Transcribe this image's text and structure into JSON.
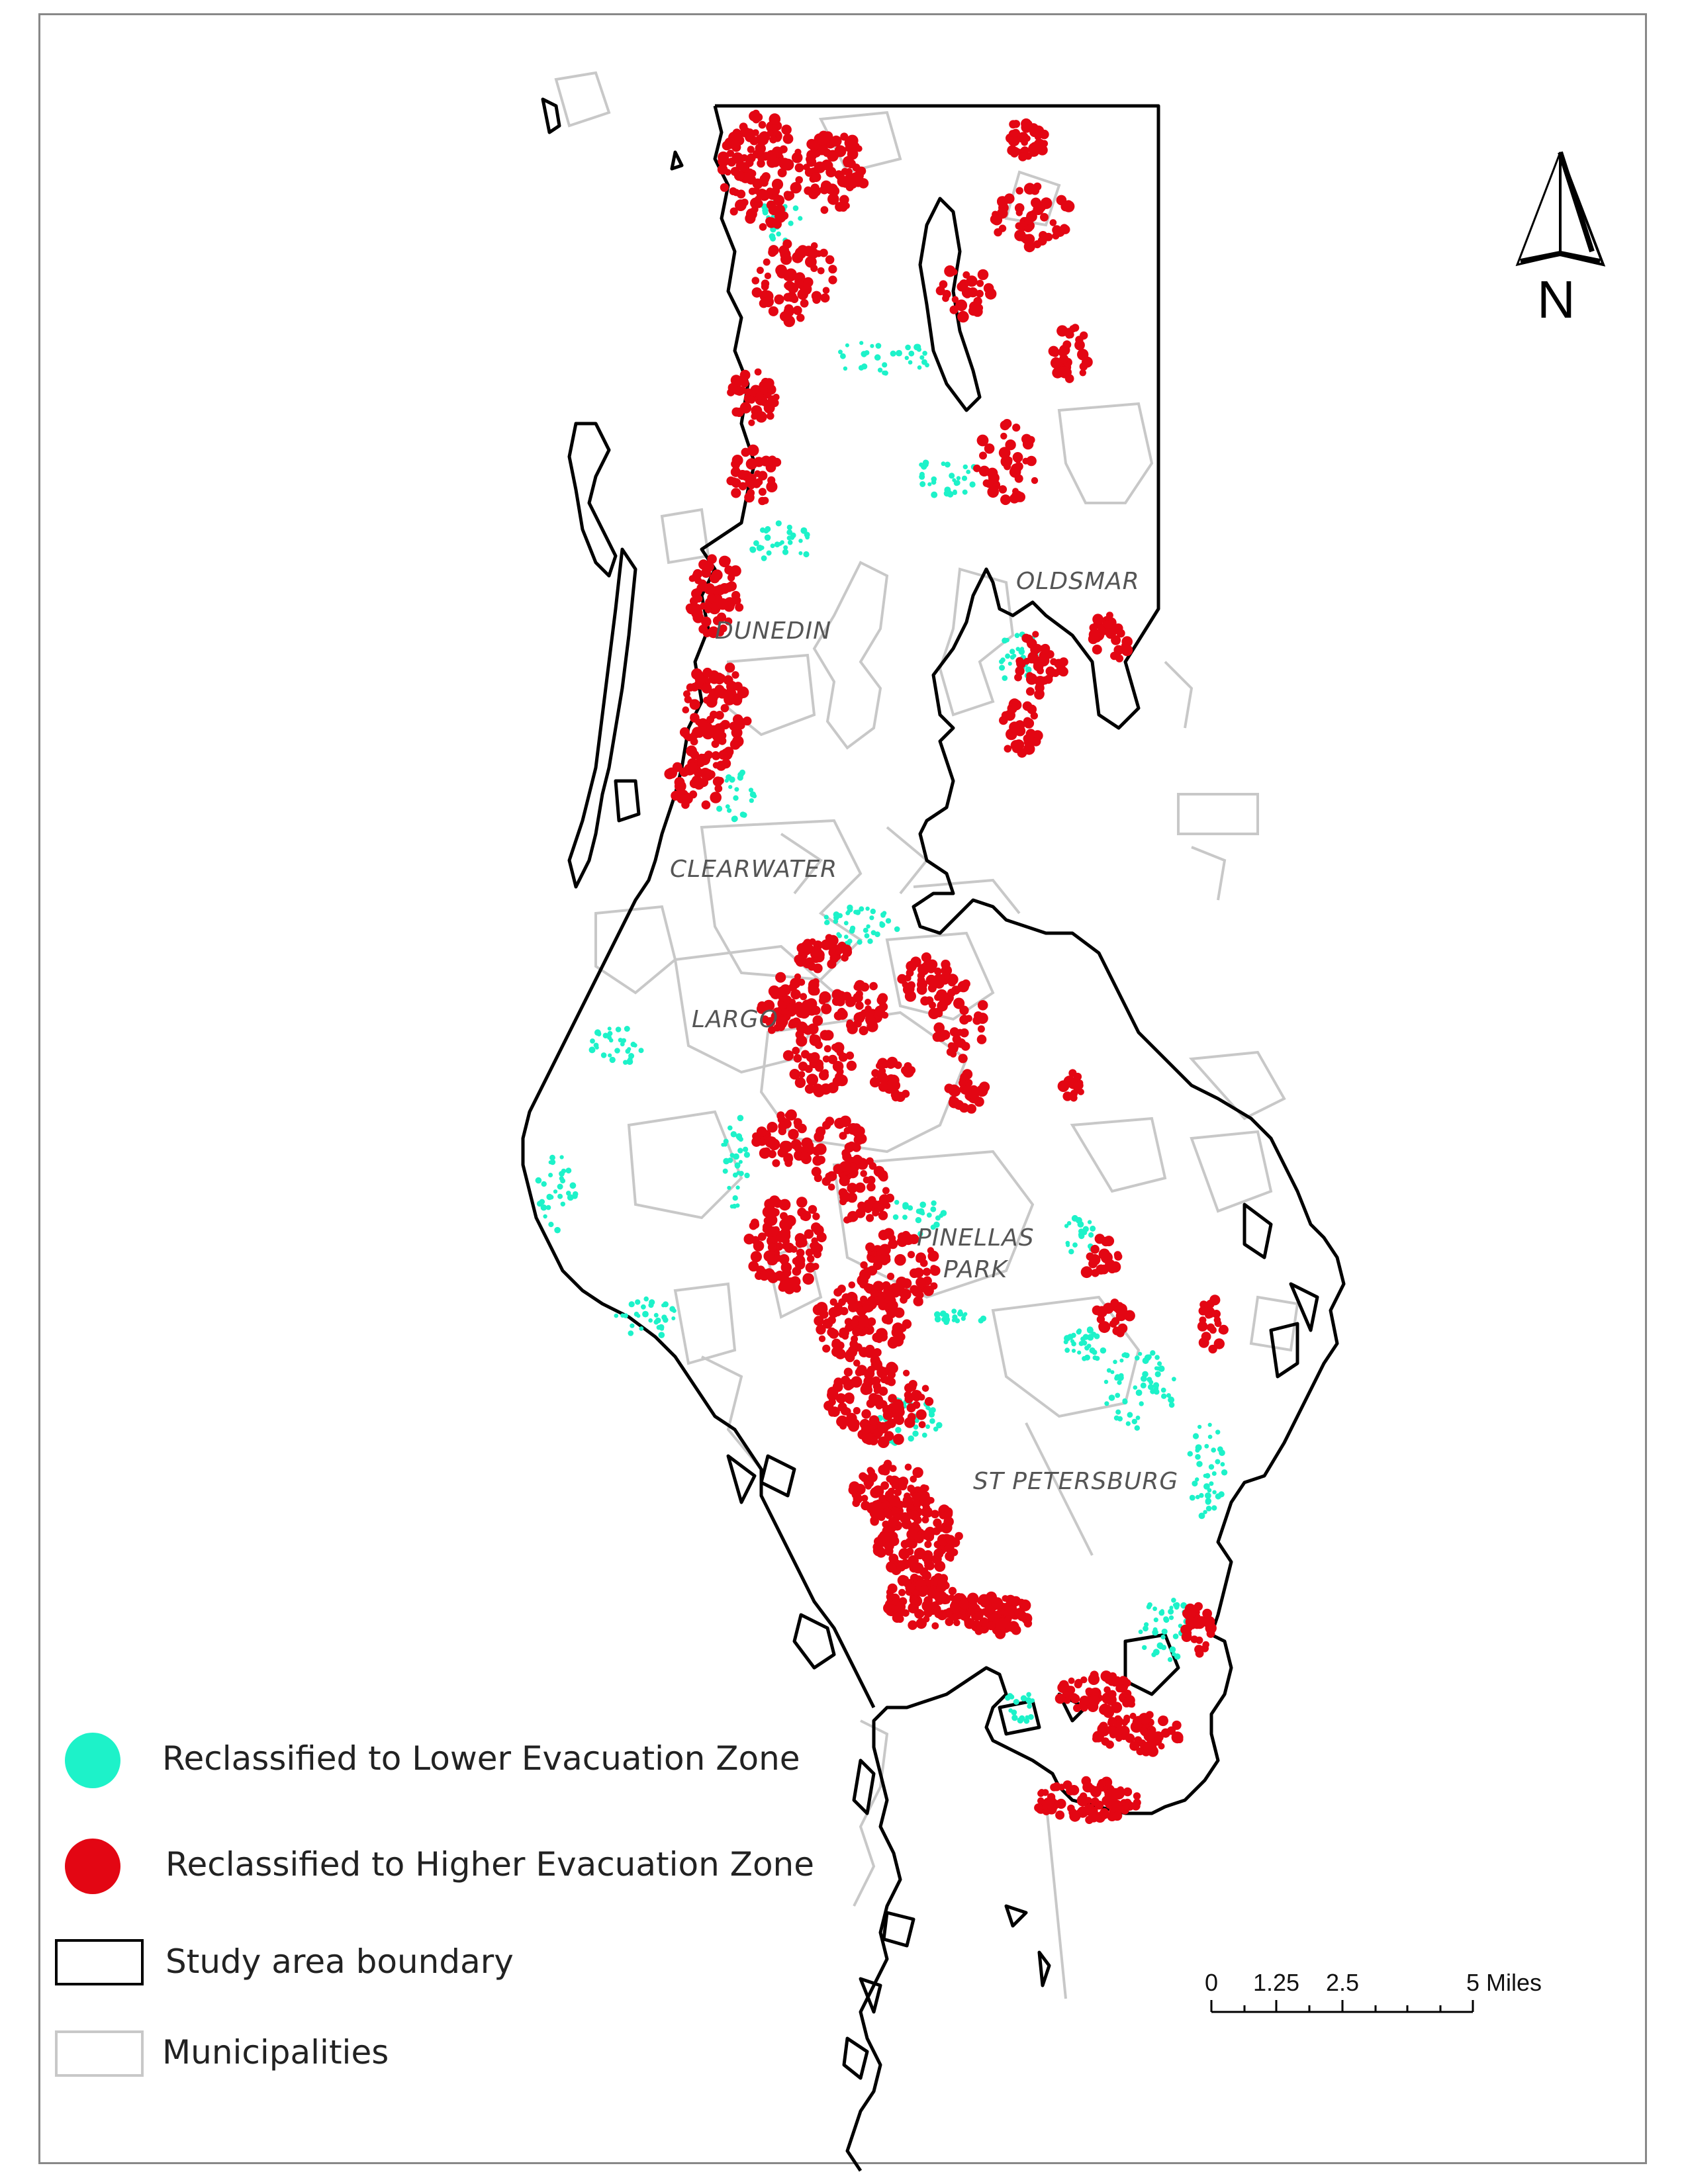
{
  "map": {
    "cities": [
      {
        "name": "OLDSMAR"
      },
      {
        "name": "DUNEDIN"
      },
      {
        "name": "CLEARWATER"
      },
      {
        "name": "LARGO"
      },
      {
        "name": "PINELLAS"
      },
      {
        "name": "PARK"
      },
      {
        "name": "ST PETERSBURG"
      }
    ],
    "north_arrow": {
      "label": "N",
      "icon": "north-arrow-icon"
    }
  },
  "legend": {
    "lower": {
      "label": "Reclassified to Lower Evacuation Zone",
      "color": "#1df2c9",
      "icon": "teal-dot-icon"
    },
    "higher": {
      "label": "Reclassified to Higher Evacuation Zone",
      "color": "#e30613",
      "icon": "red-dot-icon"
    },
    "boundary": {
      "label": "Study area boundary",
      "color": "#000000",
      "icon": "black-box-icon"
    },
    "municipalities": {
      "label": "Municipalities",
      "color": "#c8c8c8",
      "icon": "gray-box-icon"
    }
  },
  "scale_bar": {
    "ticks": [
      "0",
      "1.25",
      "2.5",
      "5 Miles"
    ]
  }
}
